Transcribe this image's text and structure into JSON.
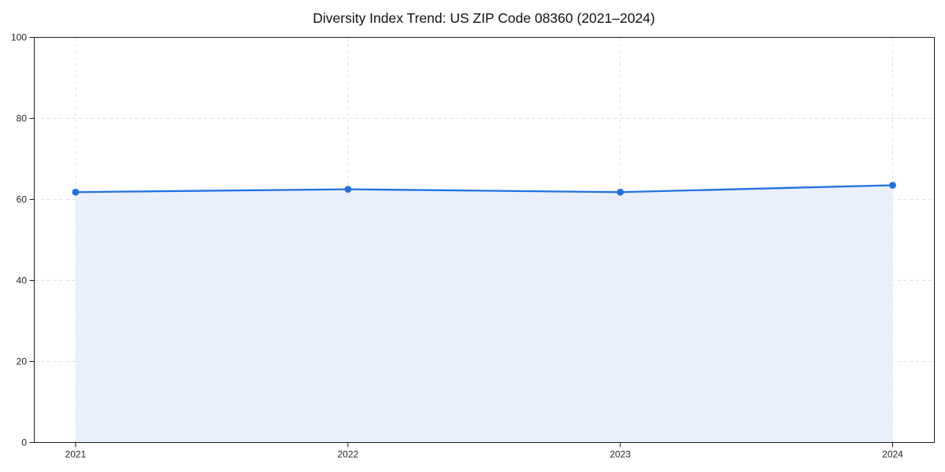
{
  "chart_data": {
    "type": "line",
    "title": "Diversity Index Trend: US ZIP Code 08360 (2021–2024)",
    "x": [
      "2021",
      "2022",
      "2023",
      "2024"
    ],
    "series": [
      {
        "name": "Diversity Index",
        "values": [
          61.8,
          62.5,
          61.8,
          63.5
        ]
      }
    ],
    "xlabel": "",
    "ylabel": "",
    "ylim": [
      0,
      100
    ],
    "yticks": [
      0,
      20,
      40,
      60,
      80,
      100
    ],
    "grid": "dashed",
    "legend_position": "none",
    "area_fill": true,
    "marker": "circle",
    "colors": {
      "line": "#2271e0",
      "marker": "#2271e0",
      "area": "#e9f0fc",
      "grid": "#e0e0e0",
      "axis": "#1a1a1a",
      "tick_text": "#262626",
      "title_text": "#111111",
      "background": "#ffffff"
    }
  }
}
